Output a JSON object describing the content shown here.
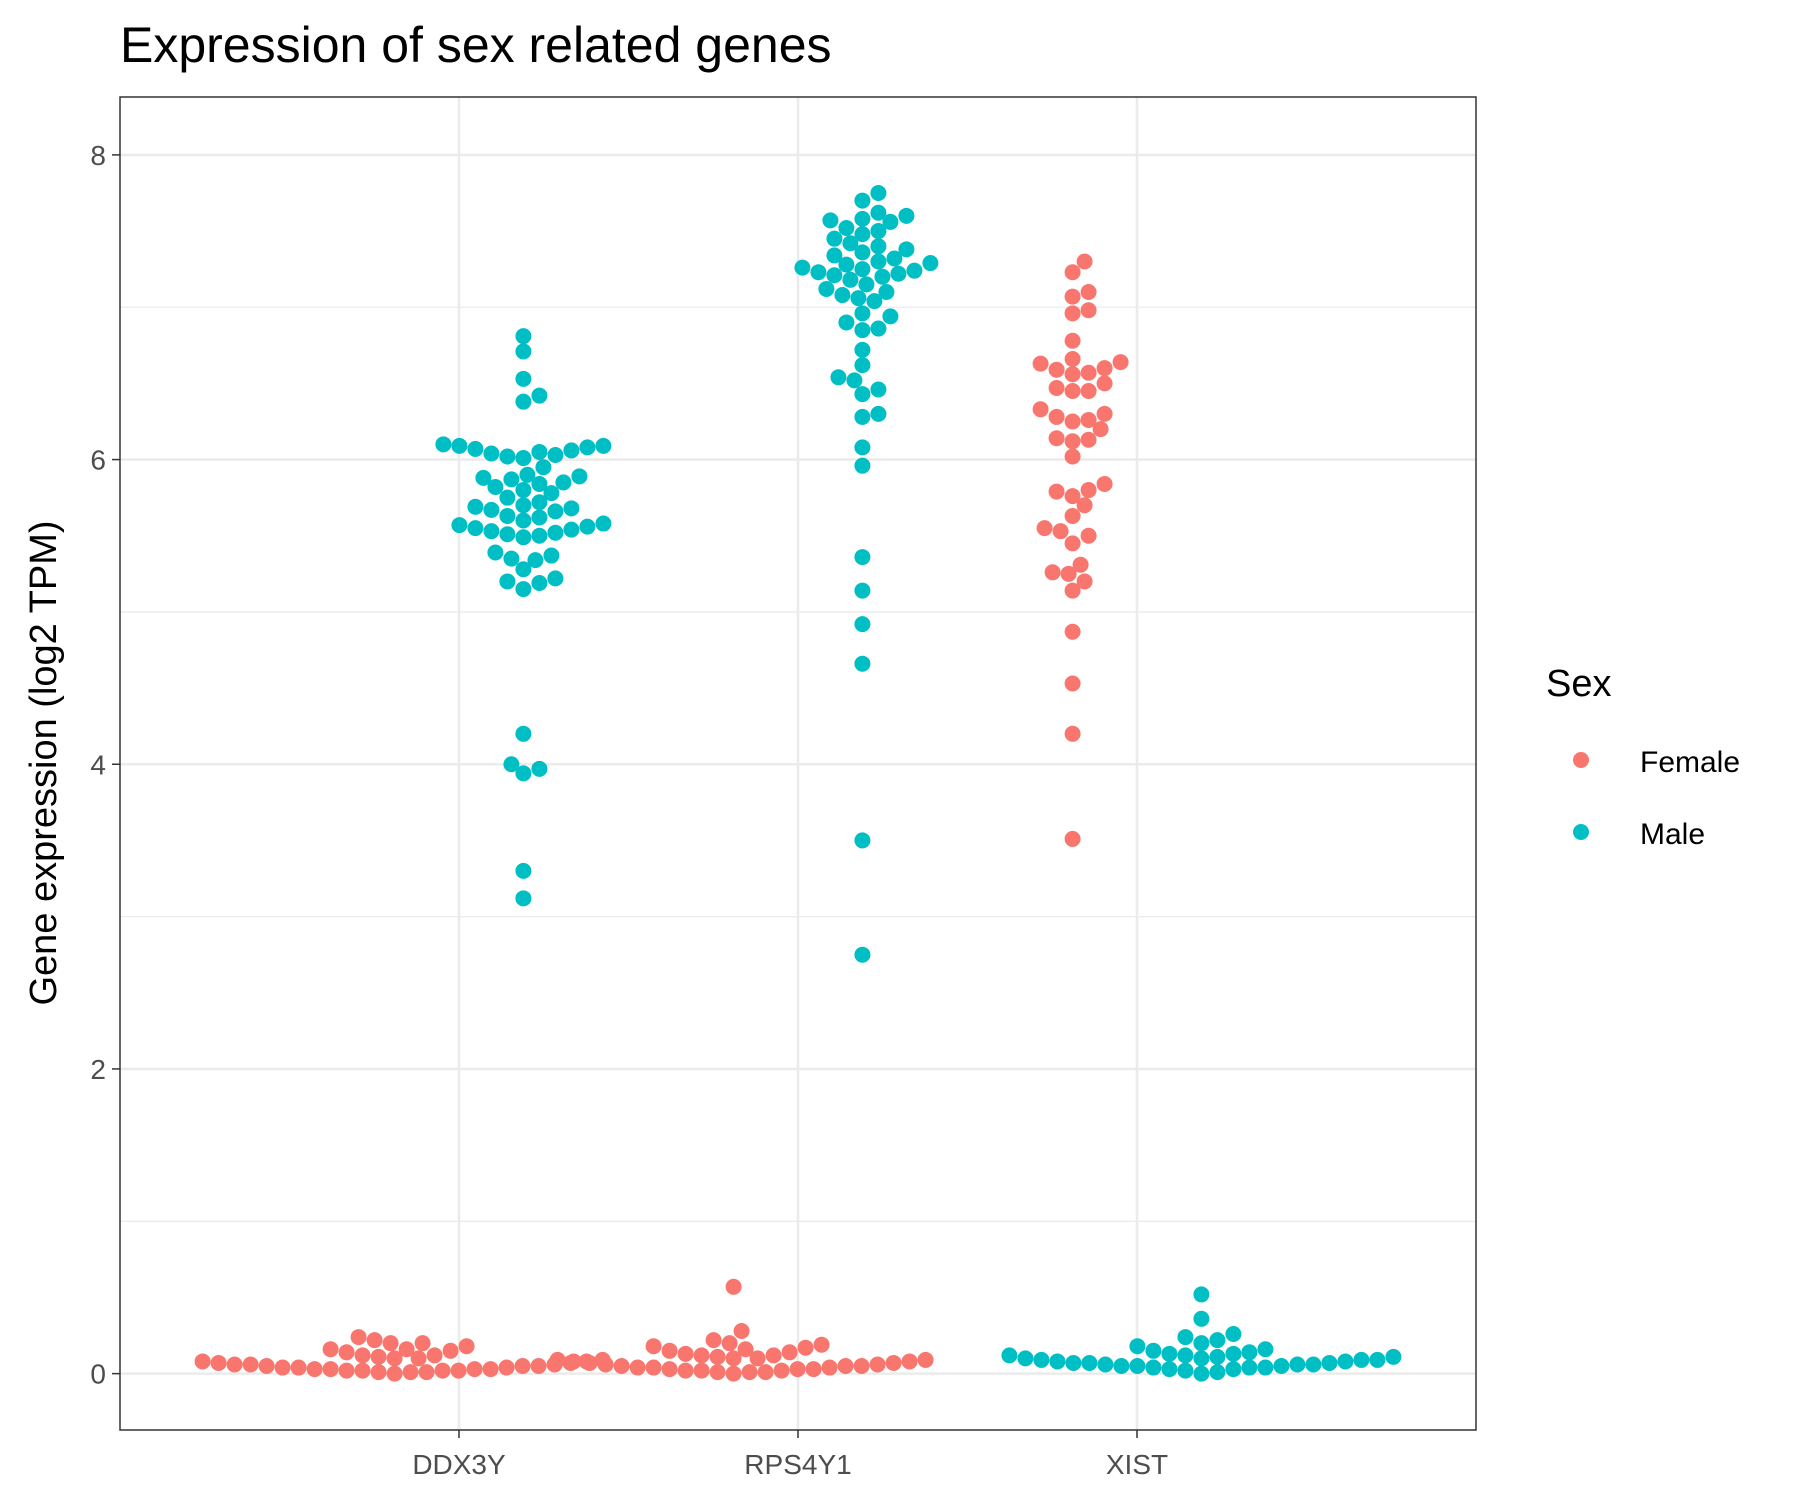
{
  "chart_data": {
    "type": "scatter",
    "subtype": "beeswarm",
    "title": "Expression of sex related genes",
    "xlabel": "",
    "ylabel": "Gene expression (log2 TPM)",
    "categories": [
      "DDX3Y",
      "RPS4Y1",
      "XIST"
    ],
    "y_ticks": [
      "0",
      "2",
      "4",
      "6",
      "8"
    ],
    "ylim": [
      -0.37,
      8.38
    ],
    "grid": true,
    "legend": {
      "title": "Sex",
      "position": "right",
      "entries": [
        {
          "label": "Female",
          "color": "#F8766D"
        },
        {
          "label": "Male",
          "color": "#00BFC4"
        }
      ]
    },
    "series": [
      {
        "name": "Female",
        "color": "#F8766D",
        "points": [
          {
            "category": "DDX3Y",
            "values": [
              0.02,
              0.03,
              0.04,
              0.05,
              0.01,
              0.06,
              0.08,
              0.1,
              0.12,
              0.15,
              0.18,
              0.22,
              0.24,
              0.2,
              0.16,
              0.14,
              0.11,
              0.09,
              0.07,
              0.05,
              0.03,
              0.02,
              0.01,
              0.0,
              0.04,
              0.06,
              0.08,
              0.12,
              0.16,
              0.2,
              0.1,
              0.07,
              0.05,
              0.03,
              0.02,
              0.01,
              0.04,
              0.06,
              0.03,
              0.02
            ]
          },
          {
            "category": "RPS4Y1",
            "values": [
              0.57,
              0.28,
              0.2,
              0.18,
              0.16,
              0.14,
              0.12,
              0.1,
              0.08,
              0.06,
              0.04,
              0.02,
              0.01,
              0.0,
              0.03,
              0.05,
              0.07,
              0.09,
              0.11,
              0.13,
              0.15,
              0.17,
              0.19,
              0.22,
              0.12,
              0.1,
              0.08,
              0.06,
              0.04,
              0.02,
              0.01,
              0.03,
              0.05,
              0.07,
              0.09,
              0.02,
              0.04,
              0.01,
              0.03,
              0.05
            ]
          },
          {
            "category": "XIST",
            "values": [
              7.3,
              7.23,
              7.1,
              7.07,
              6.98,
              6.96,
              6.78,
              6.66,
              6.64,
              6.63,
              6.6,
              6.59,
              6.57,
              6.56,
              6.5,
              6.47,
              6.45,
              6.45,
              6.33,
              6.3,
              6.28,
              6.26,
              6.25,
              6.2,
              6.14,
              6.13,
              6.12,
              6.02,
              5.84,
              5.8,
              5.79,
              5.76,
              5.7,
              5.63,
              5.55,
              5.53,
              5.5,
              5.45,
              5.31,
              5.26,
              5.25,
              5.2,
              5.14,
              4.87,
              4.53,
              4.2,
              3.51
            ]
          }
        ]
      },
      {
        "name": "Male",
        "color": "#00BFC4",
        "points": [
          {
            "category": "DDX3Y",
            "values": [
              6.81,
              6.71,
              6.53,
              6.42,
              6.38,
              6.1,
              6.09,
              6.09,
              6.08,
              6.07,
              6.06,
              6.05,
              6.04,
              6.03,
              6.02,
              6.01,
              5.95,
              5.9,
              5.89,
              5.88,
              5.87,
              5.85,
              5.84,
              5.82,
              5.8,
              5.78,
              5.75,
              5.72,
              5.7,
              5.69,
              5.68,
              5.67,
              5.66,
              5.63,
              5.62,
              5.6,
              5.58,
              5.57,
              5.56,
              5.55,
              5.54,
              5.53,
              5.52,
              5.51,
              5.5,
              5.49,
              5.39,
              5.37,
              5.35,
              5.34,
              5.28,
              5.22,
              5.2,
              5.19,
              5.15,
              4.2,
              4.0,
              3.97,
              3.94,
              3.3,
              3.12
            ]
          },
          {
            "category": "RPS4Y1",
            "values": [
              7.75,
              7.7,
              7.62,
              7.6,
              7.58,
              7.57,
              7.56,
              7.52,
              7.5,
              7.48,
              7.45,
              7.42,
              7.4,
              7.38,
              7.36,
              7.34,
              7.32,
              7.3,
              7.29,
              7.28,
              7.26,
              7.25,
              7.24,
              7.23,
              7.22,
              7.21,
              7.2,
              7.18,
              7.15,
              7.12,
              7.1,
              7.08,
              7.06,
              7.04,
              6.96,
              6.94,
              6.9,
              6.86,
              6.85,
              6.72,
              6.62,
              6.54,
              6.52,
              6.46,
              6.43,
              6.3,
              6.28,
              6.08,
              5.96,
              5.36,
              5.14,
              4.92,
              4.66,
              3.5,
              2.75
            ]
          },
          {
            "category": "XIST",
            "values": [
              0.52,
              0.36,
              0.26,
              0.24,
              0.22,
              0.2,
              0.18,
              0.16,
              0.15,
              0.14,
              0.13,
              0.12,
              0.11,
              0.1,
              0.09,
              0.08,
              0.07,
              0.06,
              0.05,
              0.04,
              0.03,
              0.02,
              0.01,
              0.0,
              0.05,
              0.07,
              0.09,
              0.11,
              0.13,
              0.1,
              0.08,
              0.06,
              0.04,
              0.03,
              0.05,
              0.07,
              0.09,
              0.12,
              0.06,
              0.04
            ]
          }
        ]
      }
    ]
  }
}
